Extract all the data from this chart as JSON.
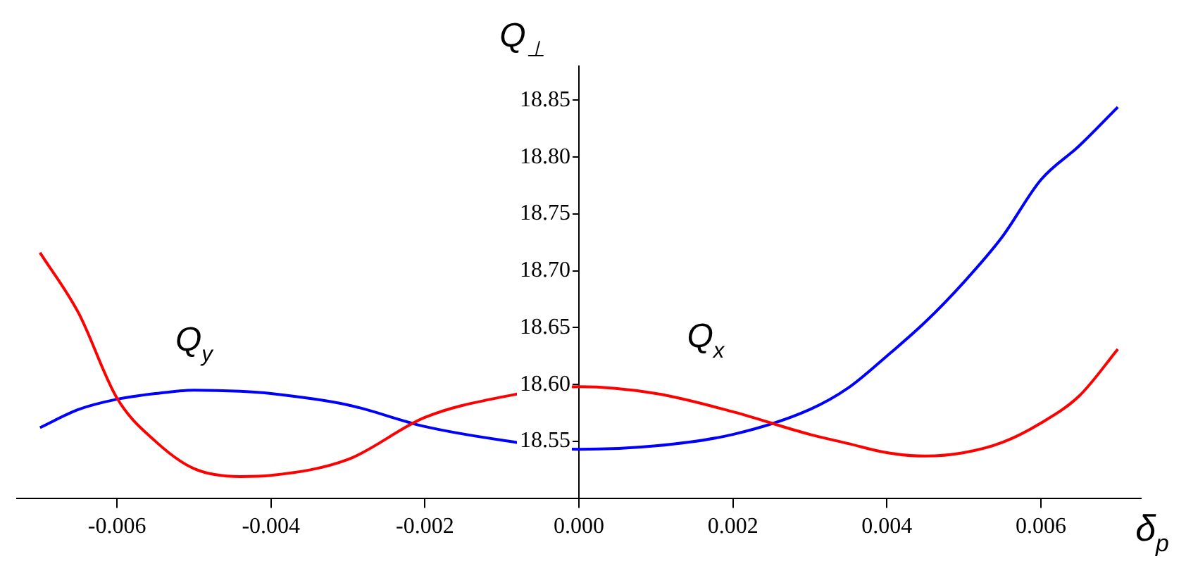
{
  "chart_data": {
    "type": "line",
    "xlabel": "δ$_{p}$",
    "ylabel": "Q$_{⊥}$",
    "xlim": [
      -0.0073,
      0.0073
    ],
    "ylim": [
      18.5,
      18.88
    ],
    "xticks": [
      {
        "value": -0.006,
        "label": "-0.006"
      },
      {
        "value": -0.004,
        "label": "-0.004"
      },
      {
        "value": -0.002,
        "label": "-0.002"
      },
      {
        "value": 0,
        "label": "0.000"
      },
      {
        "value": 0.002,
        "label": "0.002"
      },
      {
        "value": 0.004,
        "label": "0.004"
      },
      {
        "value": 0.006,
        "label": "0.006"
      }
    ],
    "yticks": [
      {
        "value": 18.55,
        "label": "18.55"
      },
      {
        "value": 18.6,
        "label": "18.60"
      },
      {
        "value": 18.65,
        "label": "18.65"
      },
      {
        "value": 18.7,
        "label": "18.70"
      },
      {
        "value": 18.75,
        "label": "18.75"
      },
      {
        "value": 18.8,
        "label": "18.80"
      },
      {
        "value": 18.85,
        "label": "18.85"
      }
    ],
    "x": [
      -0.007,
      -0.0065,
      -0.006,
      -0.0055,
      -0.005,
      -0.0044,
      -0.004,
      -0.003,
      -0.002,
      -0.001,
      0,
      0.001,
      0.002,
      0.003,
      0.0035,
      0.004,
      0.0045,
      0.005,
      0.0055,
      0.006,
      0.0065,
      0.007
    ],
    "series": [
      {
        "name": "Q$_{x}$",
        "color": "#ff0000",
        "values": [
          18.716,
          18.663,
          18.588,
          18.55,
          18.526,
          18.519,
          18.52,
          18.534,
          18.571,
          18.589,
          18.598,
          18.592,
          18.576,
          18.556,
          18.548,
          18.54,
          18.537,
          18.54,
          18.549,
          18.566,
          18.59,
          18.631
        ]
      },
      {
        "name": "Q$_{y}$",
        "color": "#0000ff",
        "values": [
          18.562,
          18.578,
          18.587,
          18.592,
          18.595,
          18.594,
          18.592,
          18.582,
          18.563,
          18.551,
          18.543,
          18.546,
          18.556,
          18.578,
          18.597,
          18.625,
          18.655,
          18.69,
          18.73,
          18.78,
          18.81,
          18.844
        ]
      }
    ],
    "grid": false,
    "legend": false,
    "marker": "none",
    "line_style": "solid"
  }
}
